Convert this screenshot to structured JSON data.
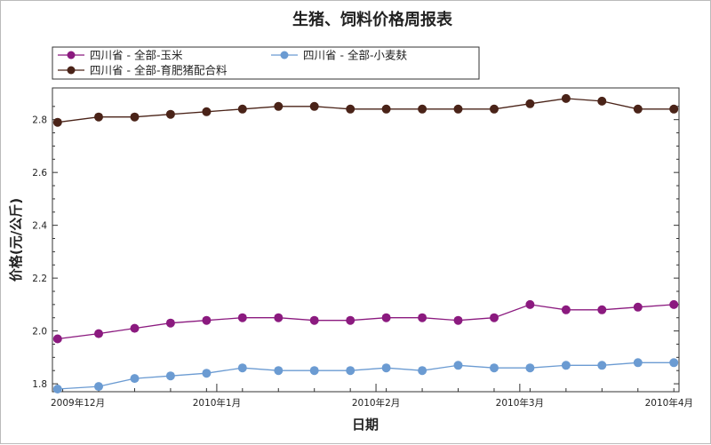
{
  "chart_data": {
    "type": "line",
    "title": "生猪、饲料价格周报表",
    "xlabel": "日期",
    "ylabel": "价格(元/公斤)",
    "ylim": [
      1.77,
      2.92
    ],
    "y_ticks": [
      "1.8",
      "2.0",
      "2.2",
      "2.4",
      "2.6",
      "2.8"
    ],
    "x_ticks": [
      "2009年12月",
      "2010年1月",
      "2010年2月",
      "2010年3月",
      "2010年4月"
    ],
    "grid": false,
    "legend_position": "top",
    "x": [
      "2009-12-01",
      "2009-12-09",
      "2009-12-16",
      "2009-12-23",
      "2009-12-30",
      "2010-01-06",
      "2010-01-13",
      "2010-01-20",
      "2010-01-27",
      "2010-02-03",
      "2010-02-10",
      "2010-02-17",
      "2010-02-24",
      "2010-03-03",
      "2010-03-10",
      "2010-03-17",
      "2010-03-24",
      "2010-03-31"
    ],
    "series": [
      {
        "name": "四川省 - 全部-玉米",
        "color": "#8b1a7f",
        "values": [
          1.97,
          1.99,
          2.01,
          2.03,
          2.04,
          2.05,
          2.05,
          2.04,
          2.04,
          2.05,
          2.05,
          2.04,
          2.05,
          2.1,
          2.08,
          2.08,
          2.09,
          2.1
        ]
      },
      {
        "name": "四川省 - 全部-小麦麸",
        "color": "#6b9bd2",
        "values": [
          1.78,
          1.79,
          1.82,
          1.83,
          1.84,
          1.86,
          1.85,
          1.85,
          1.85,
          1.86,
          1.85,
          1.87,
          1.86,
          1.86,
          1.87,
          1.87,
          1.88,
          1.88
        ]
      },
      {
        "name": "四川省 - 全部-育肥猪配合料",
        "color": "#4a2318",
        "values": [
          2.79,
          2.81,
          2.81,
          2.82,
          2.83,
          2.84,
          2.85,
          2.85,
          2.84,
          2.84,
          2.84,
          2.84,
          2.84,
          2.86,
          2.88,
          2.87,
          2.84,
          2.84
        ]
      }
    ]
  }
}
